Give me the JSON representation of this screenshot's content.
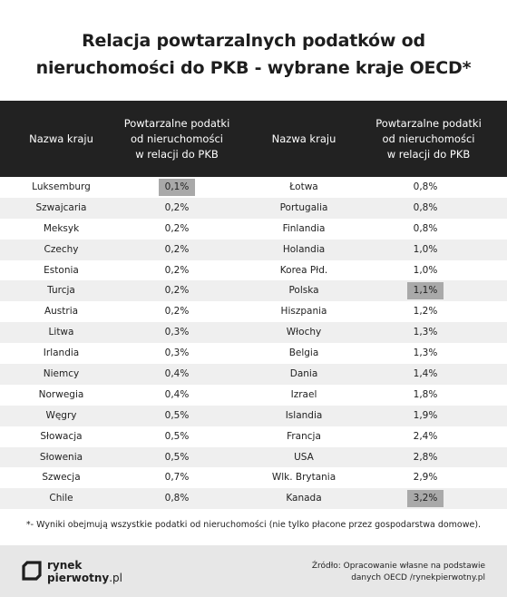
{
  "title": {
    "line1": "Relacja powtarzalnych podatków od",
    "line2": "nieruchomości do PKB - wybrane kraje OECD*"
  },
  "table": {
    "headers": {
      "country": "Nazwa kraju",
      "value_line1": "Powtarzalne podatki",
      "value_line2": "od nieruchomości",
      "value_line3": "w relacji do PKB"
    },
    "left": [
      {
        "country": "Luksemburg",
        "value": "0,1%",
        "highlight": true
      },
      {
        "country": "Szwajcaria",
        "value": "0,2%",
        "highlight": false
      },
      {
        "country": "Meksyk",
        "value": "0,2%",
        "highlight": false
      },
      {
        "country": "Czechy",
        "value": "0,2%",
        "highlight": false
      },
      {
        "country": "Estonia",
        "value": "0,2%",
        "highlight": false
      },
      {
        "country": "Turcja",
        "value": "0,2%",
        "highlight": false
      },
      {
        "country": "Austria",
        "value": "0,2%",
        "highlight": false
      },
      {
        "country": "Litwa",
        "value": "0,3%",
        "highlight": false
      },
      {
        "country": "Irlandia",
        "value": "0,3%",
        "highlight": false
      },
      {
        "country": "Niemcy",
        "value": "0,4%",
        "highlight": false
      },
      {
        "country": "Norwegia",
        "value": "0,4%",
        "highlight": false
      },
      {
        "country": "Węgry",
        "value": "0,5%",
        "highlight": false
      },
      {
        "country": "Słowacja",
        "value": "0,5%",
        "highlight": false
      },
      {
        "country": "Słowenia",
        "value": "0,5%",
        "highlight": false
      },
      {
        "country": "Szwecja",
        "value": "0,7%",
        "highlight": false
      },
      {
        "country": "Chile",
        "value": "0,8%",
        "highlight": false
      }
    ],
    "right": [
      {
        "country": "Łotwa",
        "value": "0,8%",
        "highlight": false
      },
      {
        "country": "Portugalia",
        "value": "0,8%",
        "highlight": false
      },
      {
        "country": "Finlandia",
        "value": "0,8%",
        "highlight": false
      },
      {
        "country": "Holandia",
        "value": "1,0%",
        "highlight": false
      },
      {
        "country": "Korea Płd.",
        "value": "1,0%",
        "highlight": false
      },
      {
        "country": "Polska",
        "value": "1,1%",
        "highlight": true
      },
      {
        "country": "Hiszpania",
        "value": "1,2%",
        "highlight": false
      },
      {
        "country": "Włochy",
        "value": "1,3%",
        "highlight": false
      },
      {
        "country": "Belgia",
        "value": "1,3%",
        "highlight": false
      },
      {
        "country": "Dania",
        "value": "1,4%",
        "highlight": false
      },
      {
        "country": "Izrael",
        "value": "1,8%",
        "highlight": false
      },
      {
        "country": "Islandia",
        "value": "1,9%",
        "highlight": false
      },
      {
        "country": "Francja",
        "value": "2,4%",
        "highlight": false
      },
      {
        "country": "USA",
        "value": "2,8%",
        "highlight": false
      },
      {
        "country": "Wlk. Brytania",
        "value": "2,9%",
        "highlight": false
      },
      {
        "country": "Kanada",
        "value": "3,2%",
        "highlight": true
      }
    ]
  },
  "footnote": "*- Wyniki obejmują wszystkie podatki od nieruchomości (nie tylko płacone przez gospodarstwa domowe).",
  "footer": {
    "logo_line1": "rynek",
    "logo_line2": "pierwotny",
    "logo_suffix": ".pl",
    "logo_icon": "rynekpierwotny-logo-mark",
    "source_line1": "Źródło: Opracowanie własne na podstawie",
    "source_line2": "danych OECD /rynekpierwotny.pl"
  },
  "colors": {
    "header_bg": "#222222",
    "stripe": "#efefef",
    "highlight": "#a9a9a9",
    "footer_bg": "#e7e7e7"
  }
}
